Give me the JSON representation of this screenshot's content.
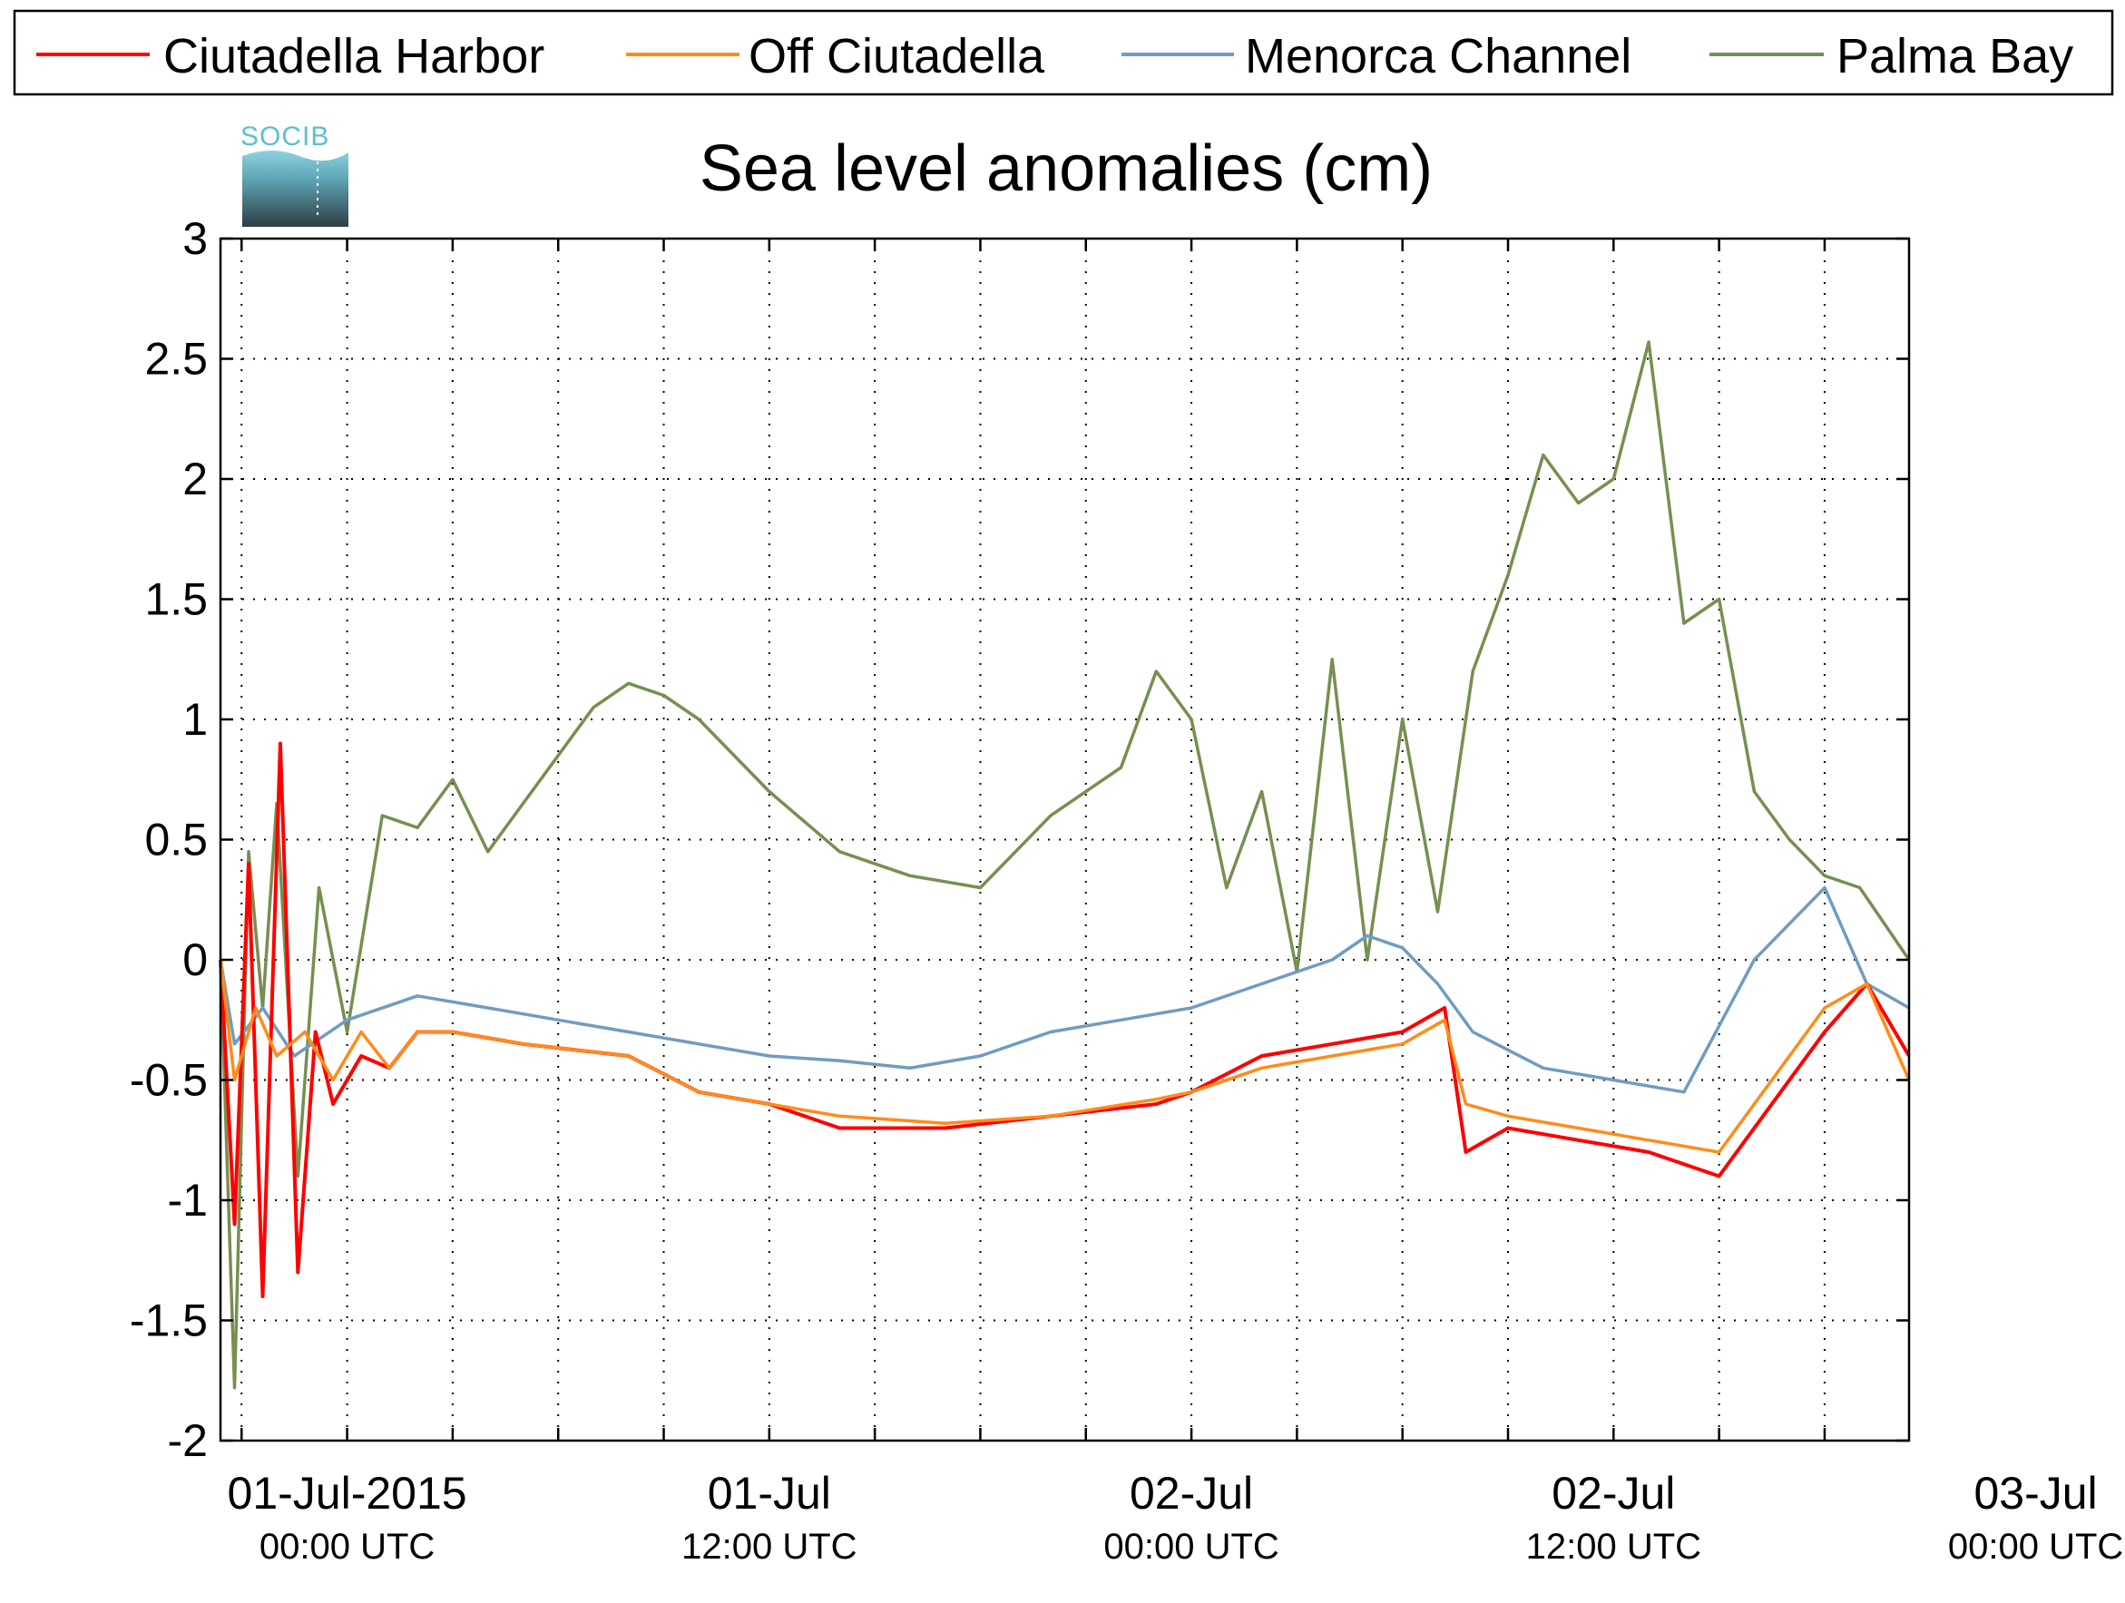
{
  "chart_data": {
    "type": "line",
    "title": "Sea level anomalies (cm)",
    "xlabel": "",
    "ylabel": "",
    "x_unit": "hours since 01-Jul-2015 00:00 UTC",
    "xlim": [
      -3.6,
      44.4
    ],
    "ylim": [
      -2,
      3
    ],
    "yticks": [
      -2,
      -1.5,
      -1,
      -0.5,
      0,
      0.5,
      1,
      1.5,
      2,
      2.5,
      3
    ],
    "ytick_labels": [
      "-2",
      "-1.5",
      "-1",
      "-0.5",
      "0",
      "0.5",
      "1",
      "1.5",
      "2",
      "2.5",
      "3"
    ],
    "xticks": [
      0,
      12,
      24,
      36,
      48
    ],
    "xtick_labels": [
      {
        "line1": "01-Jul-2015",
        "line2": "00:00 UTC"
      },
      {
        "line1": "01-Jul",
        "line2": "12:00 UTC"
      },
      {
        "line1": "02-Jul",
        "line2": "00:00 UTC"
      },
      {
        "line1": "02-Jul",
        "line2": "12:00 UTC"
      },
      {
        "line1": "03-Jul",
        "line2": "00:00 UTC"
      }
    ],
    "grid": true,
    "legend_position": "top",
    "logo": "SOCIB",
    "series": [
      {
        "name": "Ciutadella Harbor",
        "color": "#ff0000",
        "x": [
          -3.6,
          -3.2,
          -2.8,
          -2.4,
          -1.9,
          -1.4,
          -0.9,
          -0.4,
          0.4,
          1.2,
          2,
          3,
          5,
          8,
          10,
          12,
          14,
          17,
          20,
          23,
          24,
          26,
          28,
          30,
          31.2,
          31.8,
          33,
          35,
          37,
          39,
          42,
          43.2,
          44.4
        ],
        "y": [
          0,
          -1.1,
          0.4,
          -1.4,
          0.9,
          -1.3,
          -0.3,
          -0.6,
          -0.4,
          -0.45,
          -0.3,
          -0.3,
          -0.35,
          -0.4,
          -0.55,
          -0.6,
          -0.7,
          -0.7,
          -0.65,
          -0.6,
          -0.55,
          -0.4,
          -0.35,
          -0.3,
          -0.2,
          -0.8,
          -0.7,
          -0.75,
          -0.8,
          -0.9,
          -0.3,
          -0.1,
          -0.4
        ]
      },
      {
        "name": "Off Ciutadella",
        "color": "#ff8c1a",
        "x": [
          -3.6,
          -3.2,
          -2.6,
          -2,
          -1.2,
          -0.4,
          0.4,
          1.2,
          2,
          3,
          5,
          8,
          10,
          12,
          14,
          17,
          20,
          23,
          24,
          26,
          28,
          30,
          31.2,
          31.8,
          33,
          35,
          37,
          39,
          42,
          43.2,
          44.4
        ],
        "y": [
          0,
          -0.5,
          -0.2,
          -0.4,
          -0.3,
          -0.5,
          -0.3,
          -0.45,
          -0.3,
          -0.3,
          -0.35,
          -0.4,
          -0.55,
          -0.6,
          -0.65,
          -0.68,
          -0.65,
          -0.58,
          -0.55,
          -0.45,
          -0.4,
          -0.35,
          -0.25,
          -0.6,
          -0.65,
          -0.7,
          -0.75,
          -0.8,
          -0.2,
          -0.1,
          -0.5
        ]
      },
      {
        "name": "Menorca Channel",
        "color": "#6f9cc3",
        "x": [
          -3.6,
          -3.2,
          -2.4,
          -1.5,
          0,
          2,
          4,
          6,
          8,
          10,
          12,
          14,
          16,
          18,
          20,
          22,
          24,
          26,
          28,
          29,
          30,
          31,
          32,
          34,
          36,
          38,
          40,
          42,
          43.2,
          44.4
        ],
        "y": [
          0,
          -0.35,
          -0.2,
          -0.4,
          -0.25,
          -0.15,
          -0.2,
          -0.25,
          -0.3,
          -0.35,
          -0.4,
          -0.42,
          -0.45,
          -0.4,
          -0.3,
          -0.25,
          -0.2,
          -0.1,
          0,
          0.1,
          0.05,
          -0.1,
          -0.3,
          -0.45,
          -0.5,
          -0.55,
          0,
          0.3,
          -0.1,
          -0.2
        ]
      },
      {
        "name": "Palma Bay",
        "color": "#778f4f",
        "x": [
          -3.6,
          -3.2,
          -2.8,
          -2.4,
          -2,
          -1.4,
          -0.8,
          0,
          1,
          2,
          3,
          4,
          5,
          6,
          7,
          8,
          9,
          10,
          12,
          14,
          16,
          18,
          20,
          22,
          23,
          24,
          25,
          26,
          27,
          28,
          29,
          30,
          31,
          32,
          33,
          34,
          35,
          36,
          37,
          38,
          39,
          40,
          41,
          42,
          43,
          44.4
        ],
        "y": [
          0,
          -1.78,
          0.45,
          -0.2,
          0.65,
          -0.9,
          0.3,
          -0.3,
          0.6,
          0.55,
          0.75,
          0.45,
          0.65,
          0.85,
          1.05,
          1.15,
          1.1,
          1.0,
          0.7,
          0.45,
          0.35,
          0.3,
          0.6,
          0.8,
          1.2,
          1.0,
          0.3,
          0.7,
          -0.05,
          1.25,
          0.0,
          1.0,
          0.2,
          1.2,
          1.6,
          2.1,
          1.9,
          2.0,
          2.57,
          1.4,
          1.5,
          0.7,
          0.5,
          0.35,
          0.3,
          0.0
        ]
      }
    ]
  }
}
